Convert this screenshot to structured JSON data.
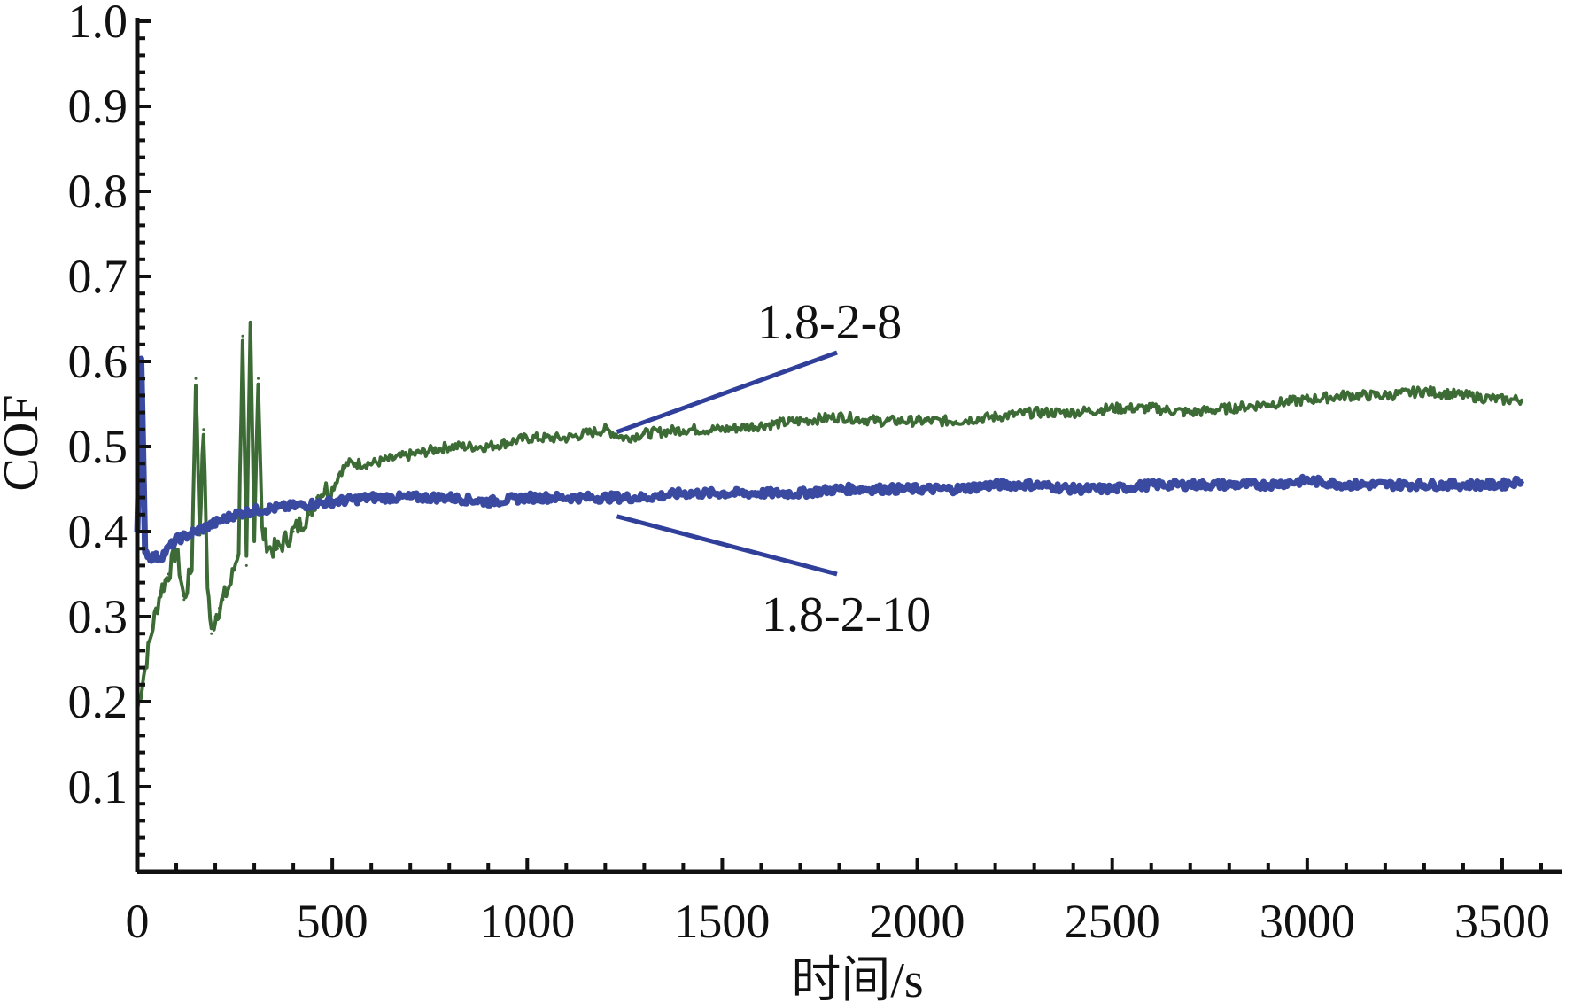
{
  "chart_data": {
    "type": "line",
    "title": "",
    "xlabel": "时间/s",
    "ylabel": "COF",
    "xlim": [
      0,
      3600
    ],
    "ylim": [
      0,
      1.0
    ],
    "x_ticks": [
      0,
      500,
      1000,
      1500,
      2000,
      2500,
      3000,
      3500
    ],
    "x_tick_labels": [
      "0",
      "500",
      "1000",
      "1500",
      "2000",
      "2500",
      "3000",
      "3500"
    ],
    "y_ticks": [
      0.1,
      0.2,
      0.3,
      0.4,
      0.5,
      0.6,
      0.7,
      0.8,
      0.9,
      1.0
    ],
    "y_tick_labels": [
      "0.1",
      "0.2",
      "0.3",
      "0.4",
      "0.5",
      "0.6",
      "0.7",
      "0.8",
      "0.9",
      "1.0"
    ],
    "grid": false,
    "legend": "none",
    "series": [
      {
        "name": "1.8-2-8",
        "color": "#3d6b35",
        "x": [
          0,
          20,
          40,
          60,
          80,
          100,
          120,
          140,
          150,
          160,
          170,
          180,
          190,
          200,
          210,
          220,
          240,
          260,
          270,
          280,
          290,
          300,
          310,
          320,
          340,
          360,
          380,
          400,
          420,
          440,
          460,
          480,
          500,
          520,
          540,
          560,
          600,
          700,
          800,
          900,
          1000,
          1100,
          1200,
          1250,
          1300,
          1400,
          1500,
          1600,
          1700,
          1800,
          1900,
          2000,
          2100,
          2200,
          2300,
          2400,
          2500,
          2600,
          2700,
          2800,
          2900,
          3000,
          3100,
          3200,
          3300,
          3400,
          3500,
          3550
        ],
        "y": [
          0.19,
          0.24,
          0.29,
          0.33,
          0.35,
          0.38,
          0.32,
          0.36,
          0.58,
          0.4,
          0.52,
          0.34,
          0.28,
          0.3,
          0.31,
          0.32,
          0.34,
          0.38,
          0.63,
          0.36,
          0.64,
          0.4,
          0.58,
          0.4,
          0.38,
          0.38,
          0.39,
          0.4,
          0.41,
          0.42,
          0.44,
          0.45,
          0.45,
          0.47,
          0.48,
          0.48,
          0.48,
          0.49,
          0.5,
          0.5,
          0.51,
          0.51,
          0.52,
          0.51,
          0.515,
          0.52,
          0.52,
          0.525,
          0.53,
          0.535,
          0.53,
          0.53,
          0.53,
          0.535,
          0.54,
          0.54,
          0.545,
          0.545,
          0.54,
          0.545,
          0.55,
          0.555,
          0.56,
          0.56,
          0.565,
          0.56,
          0.555,
          0.555
        ]
      },
      {
        "name": "1.8-2-10",
        "color": "#3a4aa0",
        "x": [
          0,
          10,
          20,
          30,
          40,
          60,
          80,
          100,
          150,
          200,
          250,
          300,
          400,
          500,
          600,
          700,
          800,
          900,
          1000,
          1100,
          1200,
          1300,
          1400,
          1500,
          1600,
          1700,
          1800,
          1900,
          2000,
          2100,
          2200,
          2300,
          2400,
          2500,
          2600,
          2700,
          2800,
          2900,
          3000,
          3100,
          3200,
          3300,
          3400,
          3500,
          3550
        ],
        "y": [
          0.4,
          0.6,
          0.38,
          0.37,
          0.37,
          0.37,
          0.38,
          0.39,
          0.4,
          0.41,
          0.42,
          0.425,
          0.43,
          0.435,
          0.44,
          0.44,
          0.44,
          0.435,
          0.44,
          0.44,
          0.44,
          0.44,
          0.445,
          0.445,
          0.445,
          0.445,
          0.45,
          0.45,
          0.45,
          0.45,
          0.455,
          0.455,
          0.45,
          0.45,
          0.455,
          0.455,
          0.455,
          0.455,
          0.46,
          0.455,
          0.455,
          0.455,
          0.455,
          0.455,
          0.46
        ]
      }
    ],
    "annotations": [
      {
        "text": "1.8-2-8",
        "series": "1.8-2-8",
        "anchor_x": 1230,
        "anchor_y": 0.515
      },
      {
        "text": "1.8-2-10",
        "series": "1.8-2-10",
        "anchor_x": 1230,
        "anchor_y": 0.445
      }
    ]
  }
}
